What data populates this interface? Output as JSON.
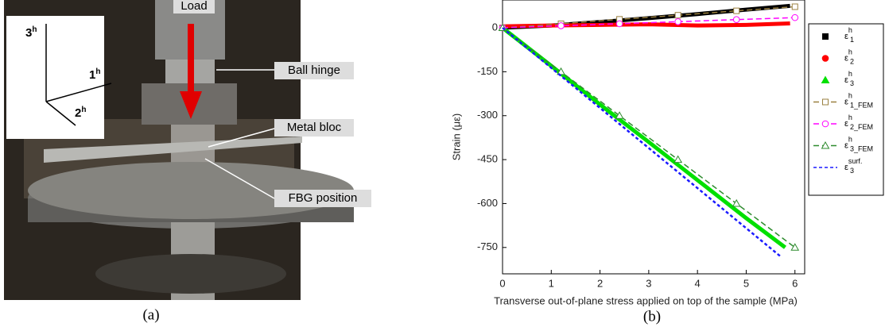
{
  "photo": {
    "labels": {
      "load": "Load",
      "ball_hinge": "Ball hinge",
      "metal_bloc": "Metal bloc",
      "fbg_position": "FBG position"
    },
    "axes": [
      {
        "text": "3",
        "sup": "h"
      },
      {
        "text": "1",
        "sup": "h"
      },
      {
        "text": "2",
        "sup": "h"
      }
    ]
  },
  "captions": [
    "(a)",
    "(b)"
  ],
  "chart_data": {
    "type": "line",
    "x_label": "Transverse out-of-plane stress applied on top of the sample (MPa)",
    "y_label": "Strain (με)",
    "xlim": [
      0,
      6.2
    ],
    "xticks": [
      0,
      1,
      2,
      3,
      4,
      5,
      6
    ],
    "ylim": [
      -840,
      95
    ],
    "yticks": [
      0,
      -150,
      -300,
      -450,
      -600,
      -750
    ],
    "series": [
      {
        "name": "ε",
        "name_sup": "h",
        "name_sub": "1",
        "color": "#000000",
        "marker": "square",
        "style": "dense",
        "x": [
          0,
          1,
          2,
          3,
          4,
          5,
          5.9
        ],
        "values": [
          0,
          8,
          20,
          33,
          47,
          62,
          75
        ]
      },
      {
        "name": "ε",
        "name_sup": "h",
        "name_sub": "2",
        "color": "#ff0000",
        "marker": "circle",
        "style": "dense",
        "x": [
          0,
          1,
          2,
          3,
          4,
          5,
          5.9
        ],
        "values": [
          5,
          8,
          10,
          12,
          8,
          10,
          15
        ]
      },
      {
        "name": "ε",
        "name_sup": "h",
        "name_sub": "3",
        "color": "#00e000",
        "marker": "triangle",
        "style": "dense",
        "x": [
          0,
          1,
          2,
          3,
          4,
          5,
          5.8
        ],
        "values": [
          0,
          -130,
          -262,
          -390,
          -520,
          -650,
          -750
        ]
      },
      {
        "name": "ε",
        "name_sup": "h",
        "name_sub": "1_FEM",
        "color": "#9a8040",
        "marker": "square-open",
        "style": "dashed",
        "x": [
          0,
          1.2,
          2.4,
          3.6,
          4.8,
          6
        ],
        "values": [
          0,
          14,
          29,
          43,
          58,
          72
        ]
      },
      {
        "name": "ε",
        "name_sup": "h",
        "name_sub": "2_FEM",
        "color": "#ff00ff",
        "marker": "circle-open",
        "style": "dashed",
        "x": [
          0,
          1.2,
          2.4,
          3.6,
          4.8,
          6
        ],
        "values": [
          0,
          7,
          14,
          21,
          28,
          35
        ]
      },
      {
        "name": "ε",
        "name_sup": "h",
        "name_sub": "3_FEM",
        "color": "#2e8b2e",
        "marker": "triangle-open",
        "style": "dashed",
        "x": [
          0,
          1.2,
          2.4,
          3.6,
          4.8,
          6
        ],
        "values": [
          0,
          -150,
          -300,
          -450,
          -600,
          -750
        ]
      },
      {
        "name": "ε",
        "name_sup": "surf.",
        "name_sub": "3",
        "color": "#1a1aff",
        "marker": "none",
        "style": "dotted",
        "x": [
          0,
          5.7
        ],
        "values": [
          0,
          -780
        ]
      }
    ]
  }
}
